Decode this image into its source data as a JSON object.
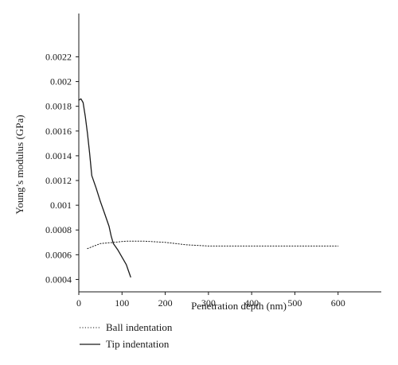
{
  "chart_data": {
    "type": "line",
    "title": "",
    "xlabel": "Penetration depth (nm)",
    "ylabel": "Young’s modulus (GPa)",
    "xlim": [
      0,
      700
    ],
    "ylim": [
      0.0003,
      0.00255
    ],
    "x_ticks": [
      0,
      100,
      200,
      300,
      400,
      500,
      600
    ],
    "x_tick_labels": [
      "0",
      "100",
      "200",
      "300",
      "400",
      "500",
      "600"
    ],
    "y_ticks": [
      0.0004,
      0.0006,
      0.0008,
      0.001,
      0.0012,
      0.0014,
      0.0016,
      0.0018,
      0.002,
      0.0022
    ],
    "y_tick_labels": [
      "0.0004",
      "0.0006",
      "0.0008",
      "0.001",
      "0.0012",
      "0.0014",
      "0.0016",
      "0.0018",
      "0.002",
      "0.0022"
    ],
    "grid": false,
    "legend_position": "bottom-left",
    "series": [
      {
        "name": "Ball indentation",
        "style": "dotted",
        "color": "#1a1a1a",
        "x": [
          20,
          50,
          80,
          110,
          150,
          200,
          250,
          300,
          350,
          400,
          450,
          500,
          550,
          600
        ],
        "y": [
          0.00065,
          0.00069,
          0.0007,
          0.00071,
          0.00071,
          0.0007,
          0.00068,
          0.00067,
          0.00067,
          0.00067,
          0.00067,
          0.00067,
          0.00067,
          0.00067
        ]
      },
      {
        "name": "Tip indentation",
        "style": "solid",
        "color": "#1a1a1a",
        "x": [
          0,
          5,
          10,
          15,
          20,
          25,
          30,
          40,
          50,
          60,
          70,
          75,
          80,
          90,
          100,
          110,
          115,
          120
        ],
        "y": [
          0.00185,
          0.00186,
          0.00183,
          0.00172,
          0.00158,
          0.00142,
          0.00124,
          0.00114,
          0.00103,
          0.00093,
          0.00083,
          0.00075,
          0.00069,
          0.00064,
          0.00058,
          0.00052,
          0.00047,
          0.00042
        ]
      }
    ]
  }
}
